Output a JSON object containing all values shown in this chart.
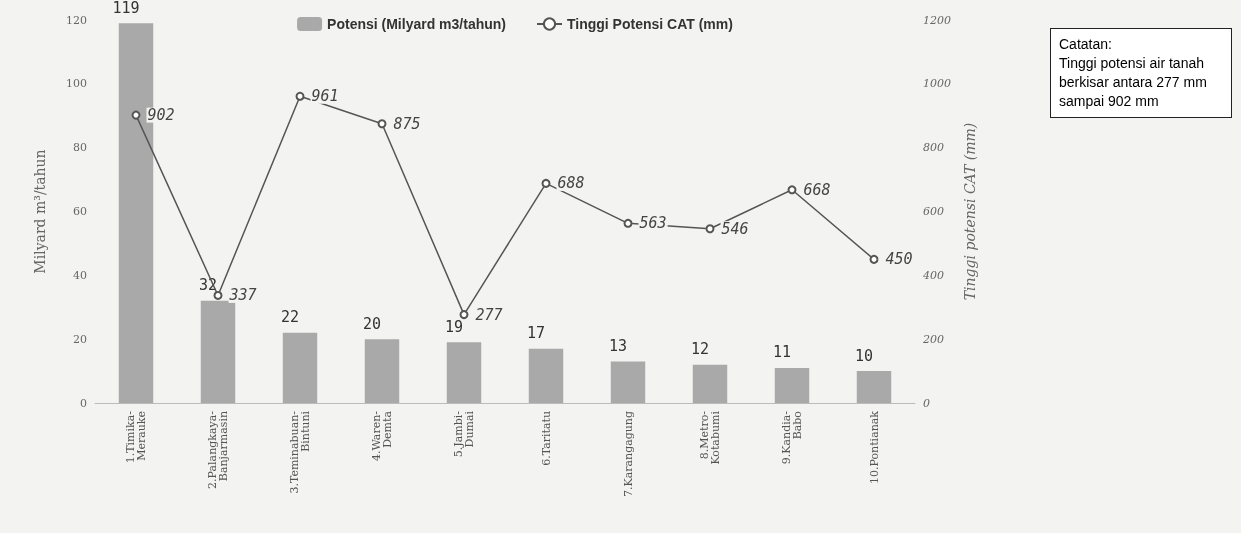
{
  "chart_data": {
    "type": "bar",
    "categories": [
      "1.Timika-Merauke",
      "2.Palangkaya-Banjarmasin",
      "3.Teminabuan-Bintuni",
      "4.Waren-Demta",
      "5.Jambi-Dumai",
      "6.Taritatu",
      "7.Karangagung",
      "8.Metro-Kotabumi",
      "9.Kandia-Babo",
      "10.Pontianak"
    ],
    "series": [
      {
        "name": "Potensi (Milyard m3/tahun)",
        "color": "#a9a9a9",
        "values": [
          119,
          32,
          22,
          20,
          19,
          17,
          13,
          12,
          11,
          10
        ]
      },
      {
        "name": "Tinggi Potensi CAT (mm)",
        "type": "line",
        "axis": "y2",
        "color": "#555555",
        "marker": "circle",
        "values": [
          902,
          337,
          961,
          875,
          277,
          688,
          563,
          546,
          668,
          450
        ]
      }
    ],
    "ylabel": "Milyard m³/tahun",
    "y2label": "Tinggi potensi CAT (mm)",
    "ylim": [
      0,
      120
    ],
    "yticks": [
      0,
      20,
      40,
      60,
      80,
      100,
      120
    ],
    "y2lim": [
      0,
      1200
    ],
    "y2ticks": [
      0,
      200,
      400,
      600,
      800,
      1000,
      1200
    ],
    "data_labels": true,
    "legend": "top",
    "grid": false,
    "annotations": [
      "Catatan:\nTinggi potensi air tanah berkisar antara 277 mm sampai 902 mm"
    ]
  }
}
